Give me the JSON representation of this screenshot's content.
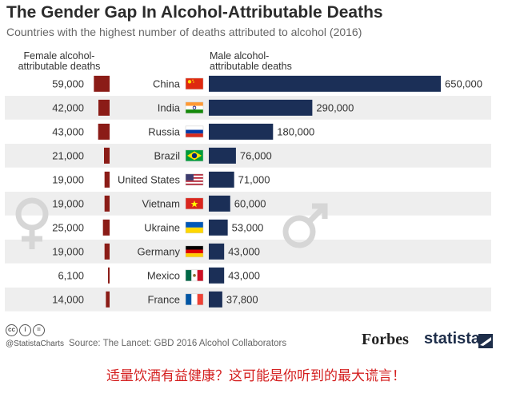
{
  "title": "The Gender Gap In Alcohol-Attributable Deaths",
  "subtitle": "Countries with the highest number of deaths attributed to alcohol (2016)",
  "female_header": [
    "Female alcohol-",
    "attributable deaths"
  ],
  "male_header": [
    "Male alcohol-",
    "attributable deaths"
  ],
  "colors": {
    "female": "#8b1c17",
    "male": "#1b2f57",
    "row_alt": "#eeeeee",
    "symbol": "#d6d6d6"
  },
  "chart_data": {
    "type": "bar",
    "layout": "butterfly",
    "categories": [
      "China",
      "India",
      "Russia",
      "Brazil",
      "United States",
      "Vietnam",
      "Ukraine",
      "Germany",
      "Mexico",
      "France"
    ],
    "series": [
      {
        "name": "Female alcohol-attributable deaths",
        "values": [
          59000,
          42000,
          43000,
          21000,
          19000,
          19000,
          25000,
          19000,
          6100,
          14000
        ],
        "labels": [
          "59,000",
          "42,000",
          "43,000",
          "21,000",
          "19,000",
          "19,000",
          "25,000",
          "19,000",
          "6,100",
          "14,000"
        ]
      },
      {
        "name": "Male alcohol-attributable deaths",
        "values": [
          650000,
          290000,
          180000,
          76000,
          71000,
          60000,
          53000,
          43000,
          43000,
          37800
        ],
        "labels": [
          "650,000",
          "290,000",
          "180,000",
          "76,000",
          "71,000",
          "60,000",
          "53,000",
          "43,000",
          "43,000",
          "37,800"
        ]
      }
    ],
    "flags": [
      "china-flag-icon",
      "india-flag-icon",
      "russia-flag-icon",
      "brazil-flag-icon",
      "usa-flag-icon",
      "vietnam-flag-icon",
      "ukraine-flag-icon",
      "germany-flag-icon",
      "mexico-flag-icon",
      "france-flag-icon"
    ]
  },
  "footer": {
    "cc_icons": [
      "cc",
      "i",
      "="
    ],
    "handle": "@StatistaCharts",
    "source": "Source: The Lancet: GBD 2016 Alcohol Collaborators",
    "forbes": "Forbes",
    "statista": "statista"
  },
  "caption": "适量饮酒有益健康？这可能是你听到的最大谎言！"
}
